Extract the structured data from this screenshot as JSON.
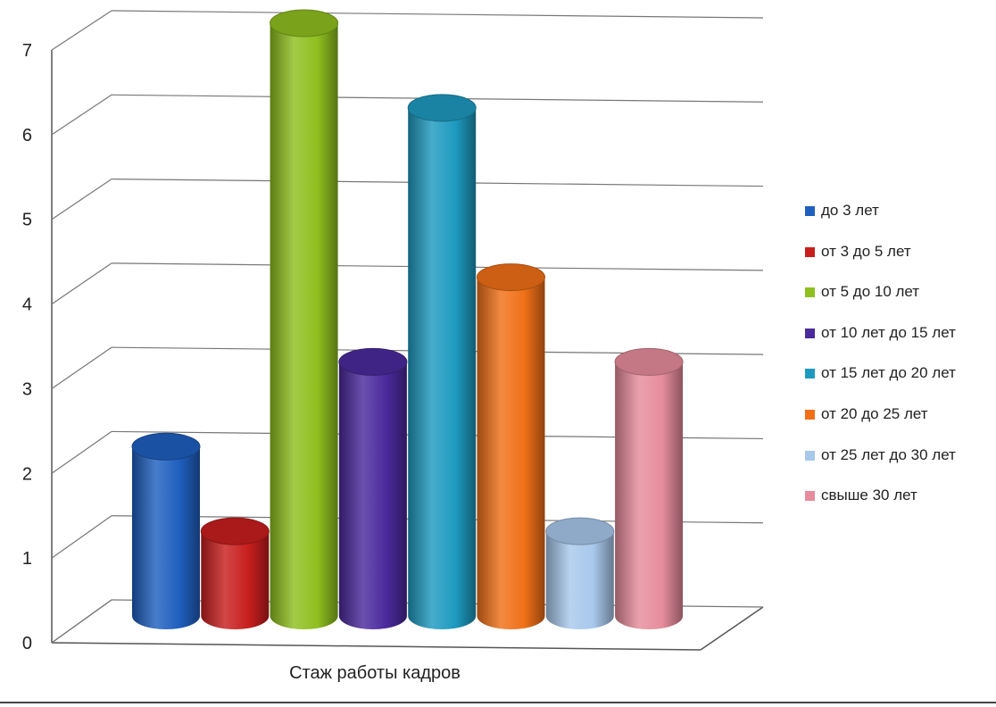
{
  "chart_data": {
    "type": "bar",
    "style": "3d-cylinder",
    "title": "",
    "xlabel": "Стаж работы кадров",
    "ylabel": "",
    "ylim": [
      0,
      7
    ],
    "yticks": [
      "0",
      "1",
      "2",
      "3",
      "4",
      "5",
      "6",
      "7"
    ],
    "categories": [
      "Стаж работы кадров"
    ],
    "grid": true,
    "legend_position": "right",
    "series": [
      {
        "name": "до 3 лет",
        "color": "#1f5fbf",
        "values": [
          2
        ]
      },
      {
        "name": "от 3 до 5 лет",
        "color": "#c81e1e",
        "values": [
          1
        ]
      },
      {
        "name": "от 5 до 10 лет",
        "color": "#8fbf1f",
        "values": [
          7
        ]
      },
      {
        "name": "от 10 лет до 15 лет",
        "color": "#4b2a9c",
        "values": [
          3
        ]
      },
      {
        "name": "от 15 лет до 20 лет",
        "color": "#1e9ac0",
        "values": [
          6
        ]
      },
      {
        "name": "от 20 до 25 лет",
        "color": "#f07018",
        "values": [
          4
        ]
      },
      {
        "name": "от 25 лет до 30 лет",
        "color": "#a8c8ec",
        "values": [
          1
        ]
      },
      {
        "name": "свыше 30 лет",
        "color": "#e68c9c",
        "values": [
          3
        ]
      }
    ]
  }
}
